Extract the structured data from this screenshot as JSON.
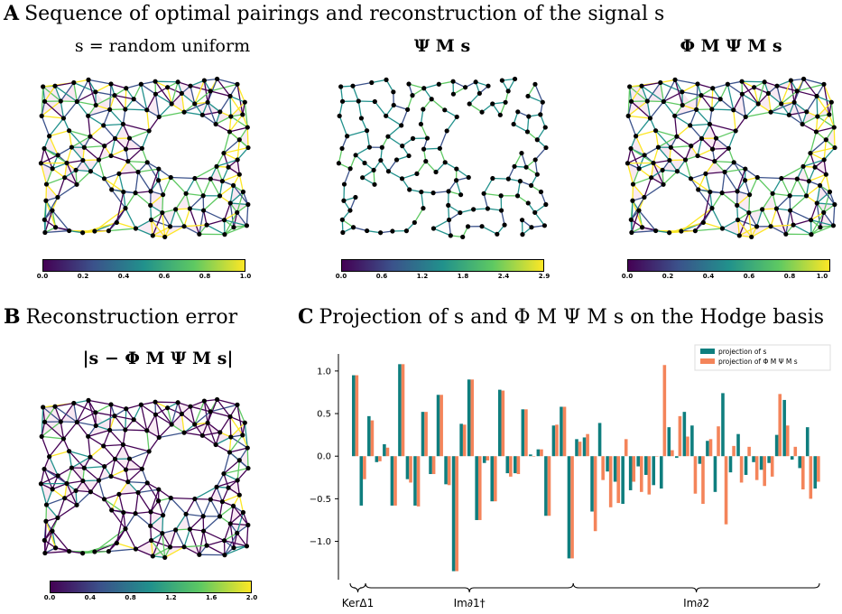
{
  "panel_a": {
    "letter": "A",
    "title": "Sequence of optimal pairings and reconstruction of the signal s",
    "subplots": [
      {
        "title": "s = random uniform",
        "colorbar_ticks": [
          "0.0",
          "0.2",
          "0.4",
          "0.6",
          "0.8",
          "1.0"
        ]
      },
      {
        "title": "Ψ M s",
        "colorbar_ticks": [
          "0.0",
          "0.6",
          "1.2",
          "1.8",
          "2.4",
          "2.9"
        ]
      },
      {
        "title": "Φ M Ψ M s",
        "colorbar_ticks": [
          "0.0",
          "0.2",
          "0.4",
          "0.6",
          "0.8",
          "1.0"
        ]
      }
    ]
  },
  "panel_b": {
    "letter": "B",
    "title": "Reconstruction error",
    "subtitle": "|s − Φ M Ψ M s|",
    "colorbar_ticks": [
      "0.0",
      "0.4",
      "0.8",
      "1.2",
      "1.6",
      "2.0"
    ]
  },
  "panel_c": {
    "letter": "C",
    "title": "Projection of s and Φ M Ψ M s on the Hodge basis"
  },
  "colormap": [
    "#440154",
    "#3b528b",
    "#21918c",
    "#5ec962",
    "#fde725"
  ],
  "chart_data": {
    "type": "bar",
    "ylim": [
      -1.45,
      1.2
    ],
    "yticks": [
      1.0,
      0.5,
      0.0,
      -0.5,
      -1.0
    ],
    "ytick_labels": [
      "1.0",
      "0.5",
      "0.0",
      "−0.5",
      "−1.0"
    ],
    "legend_position": "top-right",
    "series": [
      {
        "name": "projection of s",
        "color": "#0f7e7e",
        "values": [
          0.95,
          -0.58,
          0.47,
          -0.07,
          0.14,
          -0.58,
          1.08,
          -0.27,
          -0.58,
          0.52,
          -0.21,
          0.72,
          -0.33,
          -1.35,
          0.38,
          0.9,
          -0.75,
          -0.08,
          -0.53,
          0.78,
          -0.2,
          -0.2,
          0.55,
          0.02,
          0.08,
          -0.7,
          0.36,
          0.58,
          -1.2,
          0.2,
          0.22,
          -0.65,
          0.39,
          -0.18,
          -0.3,
          -0.56,
          -0.4,
          -0.12,
          -0.22,
          -0.34,
          -0.38,
          0.34,
          -0.02,
          0.52,
          0.36,
          -0.09,
          0.18,
          -0.42,
          0.74,
          -0.19,
          0.26,
          -0.22,
          -0.07,
          -0.16,
          -0.08,
          0.25,
          0.66,
          -0.04,
          -0.14,
          0.34,
          -0.38
        ]
      },
      {
        "name": "projection of Φ M Ψ M s",
        "color": "#f4845a",
        "values": [
          0.95,
          -0.27,
          0.42,
          -0.06,
          0.1,
          -0.58,
          1.08,
          -0.31,
          -0.59,
          0.52,
          -0.21,
          0.72,
          -0.34,
          -1.35,
          0.37,
          0.9,
          -0.75,
          -0.05,
          -0.53,
          0.77,
          -0.24,
          -0.21,
          0.55,
          -0.0,
          0.08,
          -0.7,
          0.37,
          0.58,
          -1.2,
          0.17,
          0.26,
          -0.88,
          -0.28,
          -0.6,
          -0.55,
          0.2,
          -0.3,
          -0.42,
          -0.45,
          0.0,
          1.07,
          0.07,
          0.47,
          0.23,
          -0.44,
          -0.56,
          0.2,
          0.35,
          -0.8,
          0.12,
          -0.31,
          0.11,
          -0.28,
          -0.35,
          -0.24,
          0.73,
          0.36,
          0.11,
          -0.39,
          -0.5,
          -0.3
        ]
      }
    ],
    "groups": [
      {
        "label": "KerΔ1",
        "start": 0,
        "end": 1
      },
      {
        "label": "Im∂1†",
        "start": 2,
        "end": 28
      },
      {
        "label": "Im∂2",
        "start": 29,
        "end": 60
      }
    ]
  }
}
